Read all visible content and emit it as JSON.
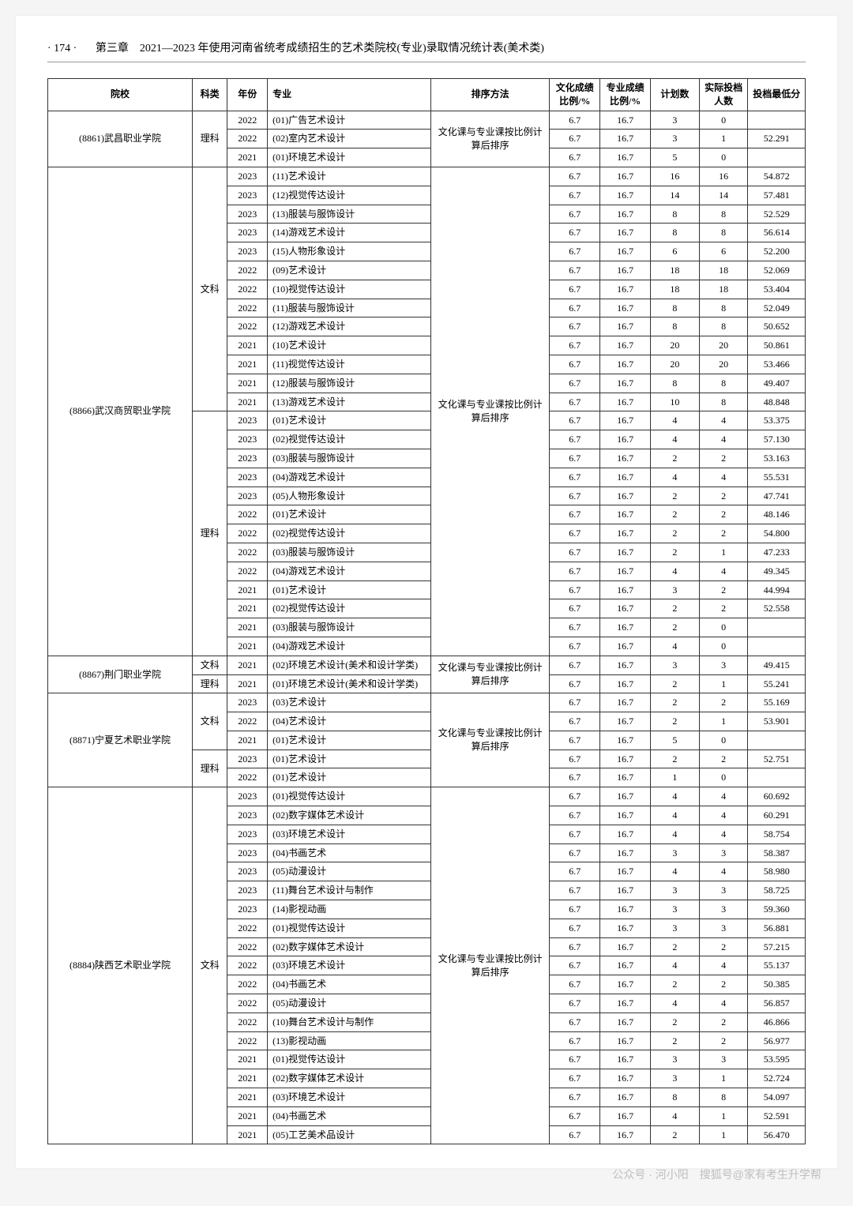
{
  "page_number": "· 174 ·",
  "chapter_title": "第三章　2021—2023 年使用河南省统考成绩招生的艺术类院校(专业)录取情况统计表(美术类)",
  "columns": [
    "院校",
    "科类",
    "年份",
    "专业",
    "排序方法",
    "文化成绩比例/%",
    "专业成绩比例/%",
    "计划数",
    "实际投档人数",
    "投档最低分"
  ],
  "sort_method": "文化课与专业课按比例计算后排序",
  "schools": [
    {
      "name": "(8861)武昌职业学院",
      "groups": [
        {
          "cat": "理科",
          "rows": [
            {
              "year": "2022",
              "major": "(01)广告艺术设计",
              "r1": "6.7",
              "r2": "16.7",
              "plan": "3",
              "actual": "0",
              "score": ""
            },
            {
              "year": "2022",
              "major": "(02)室内艺术设计",
              "r1": "6.7",
              "r2": "16.7",
              "plan": "3",
              "actual": "1",
              "score": "52.291"
            },
            {
              "year": "2021",
              "major": "(01)环境艺术设计",
              "r1": "6.7",
              "r2": "16.7",
              "plan": "5",
              "actual": "0",
              "score": ""
            }
          ]
        }
      ]
    },
    {
      "name": "(8866)武汉商贸职业学院",
      "groups": [
        {
          "cat": "文科",
          "rows": [
            {
              "year": "2023",
              "major": "(11)艺术设计",
              "r1": "6.7",
              "r2": "16.7",
              "plan": "16",
              "actual": "16",
              "score": "54.872"
            },
            {
              "year": "2023",
              "major": "(12)视觉传达设计",
              "r1": "6.7",
              "r2": "16.7",
              "plan": "14",
              "actual": "14",
              "score": "57.481"
            },
            {
              "year": "2023",
              "major": "(13)服装与服饰设计",
              "r1": "6.7",
              "r2": "16.7",
              "plan": "8",
              "actual": "8",
              "score": "52.529"
            },
            {
              "year": "2023",
              "major": "(14)游戏艺术设计",
              "r1": "6.7",
              "r2": "16.7",
              "plan": "8",
              "actual": "8",
              "score": "56.614"
            },
            {
              "year": "2023",
              "major": "(15)人物形象设计",
              "r1": "6.7",
              "r2": "16.7",
              "plan": "6",
              "actual": "6",
              "score": "52.200"
            },
            {
              "year": "2022",
              "major": "(09)艺术设计",
              "r1": "6.7",
              "r2": "16.7",
              "plan": "18",
              "actual": "18",
              "score": "52.069"
            },
            {
              "year": "2022",
              "major": "(10)视觉传达设计",
              "r1": "6.7",
              "r2": "16.7",
              "plan": "18",
              "actual": "18",
              "score": "53.404"
            },
            {
              "year": "2022",
              "major": "(11)服装与服饰设计",
              "r1": "6.7",
              "r2": "16.7",
              "plan": "8",
              "actual": "8",
              "score": "52.049"
            },
            {
              "year": "2022",
              "major": "(12)游戏艺术设计",
              "r1": "6.7",
              "r2": "16.7",
              "plan": "8",
              "actual": "8",
              "score": "50.652"
            },
            {
              "year": "2021",
              "major": "(10)艺术设计",
              "r1": "6.7",
              "r2": "16.7",
              "plan": "20",
              "actual": "20",
              "score": "50.861"
            },
            {
              "year": "2021",
              "major": "(11)视觉传达设计",
              "r1": "6.7",
              "r2": "16.7",
              "plan": "20",
              "actual": "20",
              "score": "53.466"
            },
            {
              "year": "2021",
              "major": "(12)服装与服饰设计",
              "r1": "6.7",
              "r2": "16.7",
              "plan": "8",
              "actual": "8",
              "score": "49.407"
            },
            {
              "year": "2021",
              "major": "(13)游戏艺术设计",
              "r1": "6.7",
              "r2": "16.7",
              "plan": "10",
              "actual": "8",
              "score": "48.848"
            }
          ]
        },
        {
          "cat": "理科",
          "rows": [
            {
              "year": "2023",
              "major": "(01)艺术设计",
              "r1": "6.7",
              "r2": "16.7",
              "plan": "4",
              "actual": "4",
              "score": "53.375"
            },
            {
              "year": "2023",
              "major": "(02)视觉传达设计",
              "r1": "6.7",
              "r2": "16.7",
              "plan": "4",
              "actual": "4",
              "score": "57.130"
            },
            {
              "year": "2023",
              "major": "(03)服装与服饰设计",
              "r1": "6.7",
              "r2": "16.7",
              "plan": "2",
              "actual": "2",
              "score": "53.163"
            },
            {
              "year": "2023",
              "major": "(04)游戏艺术设计",
              "r1": "6.7",
              "r2": "16.7",
              "plan": "4",
              "actual": "4",
              "score": "55.531"
            },
            {
              "year": "2023",
              "major": "(05)人物形象设计",
              "r1": "6.7",
              "r2": "16.7",
              "plan": "2",
              "actual": "2",
              "score": "47.741"
            },
            {
              "year": "2022",
              "major": "(01)艺术设计",
              "r1": "6.7",
              "r2": "16.7",
              "plan": "2",
              "actual": "2",
              "score": "48.146"
            },
            {
              "year": "2022",
              "major": "(02)视觉传达设计",
              "r1": "6.7",
              "r2": "16.7",
              "plan": "2",
              "actual": "2",
              "score": "54.800"
            },
            {
              "year": "2022",
              "major": "(03)服装与服饰设计",
              "r1": "6.7",
              "r2": "16.7",
              "plan": "2",
              "actual": "1",
              "score": "47.233"
            },
            {
              "year": "2022",
              "major": "(04)游戏艺术设计",
              "r1": "6.7",
              "r2": "16.7",
              "plan": "4",
              "actual": "4",
              "score": "49.345"
            },
            {
              "year": "2021",
              "major": "(01)艺术设计",
              "r1": "6.7",
              "r2": "16.7",
              "plan": "3",
              "actual": "2",
              "score": "44.994"
            },
            {
              "year": "2021",
              "major": "(02)视觉传达设计",
              "r1": "6.7",
              "r2": "16.7",
              "plan": "2",
              "actual": "2",
              "score": "52.558"
            },
            {
              "year": "2021",
              "major": "(03)服装与服饰设计",
              "r1": "6.7",
              "r2": "16.7",
              "plan": "2",
              "actual": "0",
              "score": ""
            },
            {
              "year": "2021",
              "major": "(04)游戏艺术设计",
              "r1": "6.7",
              "r2": "16.7",
              "plan": "4",
              "actual": "0",
              "score": ""
            }
          ]
        }
      ]
    },
    {
      "name": "(8867)荆门职业学院",
      "groups": [
        {
          "cat": "文科",
          "rows": [
            {
              "year": "2021",
              "major": "(02)环境艺术设计(美术和设计学类)",
              "r1": "6.7",
              "r2": "16.7",
              "plan": "3",
              "actual": "3",
              "score": "49.415"
            }
          ]
        },
        {
          "cat": "理科",
          "rows": [
            {
              "year": "2021",
              "major": "(01)环境艺术设计(美术和设计学类)",
              "r1": "6.7",
              "r2": "16.7",
              "plan": "2",
              "actual": "1",
              "score": "55.241"
            }
          ]
        }
      ]
    },
    {
      "name": "(8871)宁夏艺术职业学院",
      "groups": [
        {
          "cat": "文科",
          "rows": [
            {
              "year": "2023",
              "major": "(03)艺术设计",
              "r1": "6.7",
              "r2": "16.7",
              "plan": "2",
              "actual": "2",
              "score": "55.169"
            },
            {
              "year": "2022",
              "major": "(04)艺术设计",
              "r1": "6.7",
              "r2": "16.7",
              "plan": "2",
              "actual": "1",
              "score": "53.901"
            },
            {
              "year": "2021",
              "major": "(01)艺术设计",
              "r1": "6.7",
              "r2": "16.7",
              "plan": "5",
              "actual": "0",
              "score": ""
            }
          ]
        },
        {
          "cat": "理科",
          "rows": [
            {
              "year": "2023",
              "major": "(01)艺术设计",
              "r1": "6.7",
              "r2": "16.7",
              "plan": "2",
              "actual": "2",
              "score": "52.751"
            },
            {
              "year": "2022",
              "major": "(01)艺术设计",
              "r1": "6.7",
              "r2": "16.7",
              "plan": "1",
              "actual": "0",
              "score": ""
            }
          ]
        }
      ]
    },
    {
      "name": "(8884)陕西艺术职业学院",
      "groups": [
        {
          "cat": "文科",
          "rows": [
            {
              "year": "2023",
              "major": "(01)视觉传达设计",
              "r1": "6.7",
              "r2": "16.7",
              "plan": "4",
              "actual": "4",
              "score": "60.692"
            },
            {
              "year": "2023",
              "major": "(02)数字媒体艺术设计",
              "r1": "6.7",
              "r2": "16.7",
              "plan": "4",
              "actual": "4",
              "score": "60.291"
            },
            {
              "year": "2023",
              "major": "(03)环境艺术设计",
              "r1": "6.7",
              "r2": "16.7",
              "plan": "4",
              "actual": "4",
              "score": "58.754"
            },
            {
              "year": "2023",
              "major": "(04)书画艺术",
              "r1": "6.7",
              "r2": "16.7",
              "plan": "3",
              "actual": "3",
              "score": "58.387"
            },
            {
              "year": "2023",
              "major": "(05)动漫设计",
              "r1": "6.7",
              "r2": "16.7",
              "plan": "4",
              "actual": "4",
              "score": "58.980"
            },
            {
              "year": "2023",
              "major": "(11)舞台艺术设计与制作",
              "r1": "6.7",
              "r2": "16.7",
              "plan": "3",
              "actual": "3",
              "score": "58.725"
            },
            {
              "year": "2023",
              "major": "(14)影视动画",
              "r1": "6.7",
              "r2": "16.7",
              "plan": "3",
              "actual": "3",
              "score": "59.360"
            },
            {
              "year": "2022",
              "major": "(01)视觉传达设计",
              "r1": "6.7",
              "r2": "16.7",
              "plan": "3",
              "actual": "3",
              "score": "56.881"
            },
            {
              "year": "2022",
              "major": "(02)数字媒体艺术设计",
              "r1": "6.7",
              "r2": "16.7",
              "plan": "2",
              "actual": "2",
              "score": "57.215"
            },
            {
              "year": "2022",
              "major": "(03)环境艺术设计",
              "r1": "6.7",
              "r2": "16.7",
              "plan": "4",
              "actual": "4",
              "score": "55.137"
            },
            {
              "year": "2022",
              "major": "(04)书画艺术",
              "r1": "6.7",
              "r2": "16.7",
              "plan": "2",
              "actual": "2",
              "score": "50.385"
            },
            {
              "year": "2022",
              "major": "(05)动漫设计",
              "r1": "6.7",
              "r2": "16.7",
              "plan": "4",
              "actual": "4",
              "score": "56.857"
            },
            {
              "year": "2022",
              "major": "(10)舞台艺术设计与制作",
              "r1": "6.7",
              "r2": "16.7",
              "plan": "2",
              "actual": "2",
              "score": "46.866"
            },
            {
              "year": "2022",
              "major": "(13)影视动画",
              "r1": "6.7",
              "r2": "16.7",
              "plan": "2",
              "actual": "2",
              "score": "56.977"
            },
            {
              "year": "2021",
              "major": "(01)视觉传达设计",
              "r1": "6.7",
              "r2": "16.7",
              "plan": "3",
              "actual": "3",
              "score": "53.595"
            },
            {
              "year": "2021",
              "major": "(02)数字媒体艺术设计",
              "r1": "6.7",
              "r2": "16.7",
              "plan": "3",
              "actual": "1",
              "score": "52.724"
            },
            {
              "year": "2021",
              "major": "(03)环境艺术设计",
              "r1": "6.7",
              "r2": "16.7",
              "plan": "8",
              "actual": "8",
              "score": "54.097"
            },
            {
              "year": "2021",
              "major": "(04)书画艺术",
              "r1": "6.7",
              "r2": "16.7",
              "plan": "4",
              "actual": "1",
              "score": "52.591"
            },
            {
              "year": "2021",
              "major": "(05)工艺美术品设计",
              "r1": "6.7",
              "r2": "16.7",
              "plan": "2",
              "actual": "1",
              "score": "56.470"
            }
          ]
        }
      ]
    }
  ],
  "watermark_text": "公众号 · 河小阳　搜狐号@家有考生升学帮"
}
